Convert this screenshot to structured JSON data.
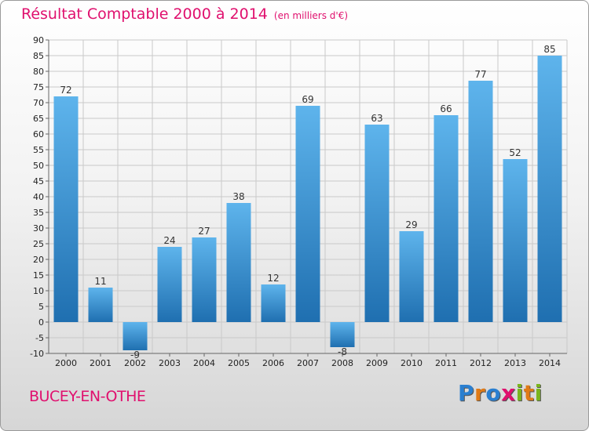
{
  "chart_data": {
    "type": "bar",
    "title": "Résultat Comptable 2000 à 2014",
    "subtitle": "(en milliers d'€)",
    "categories": [
      "2000",
      "2001",
      "2002",
      "2003",
      "2004",
      "2005",
      "2006",
      "2007",
      "2008",
      "2009",
      "2010",
      "2011",
      "2012",
      "2013",
      "2014"
    ],
    "values": [
      72,
      11,
      -9,
      24,
      27,
      38,
      12,
      69,
      -8,
      63,
      29,
      66,
      77,
      52,
      85
    ],
    "ylim": [
      -10,
      90
    ],
    "ytick_step": 5,
    "xlabel": "",
    "ylabel": "",
    "grid": true
  },
  "footer": {
    "location": "BUCEY-EN-OTHE",
    "logo_letters": [
      "P",
      "r",
      "o",
      "x",
      "i",
      "t",
      "i"
    ]
  },
  "colors": {
    "title": "#e0106e",
    "bar_top": "#5eb4ec",
    "bar_bottom": "#1f6fb0",
    "grid": "#c9c9c9",
    "logo": [
      "#2a7fd0",
      "#e07a16",
      "#2a7fd0",
      "#e0106e",
      "#7ab51d",
      "#e07a16",
      "#7ab51d"
    ]
  }
}
